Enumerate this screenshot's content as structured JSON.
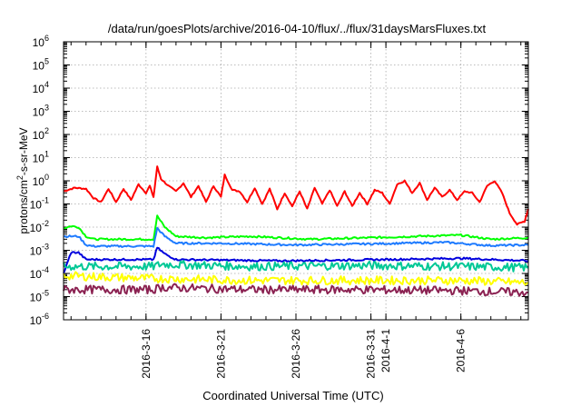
{
  "chart_data": {
    "type": "line",
    "title": "/data/run/goesPlots/archive/2016-04-10/flux/../flux/31daysMarsFluxes.txt",
    "xlabel": "Coordinated Universal Time (UTC)",
    "ylabel": "protons/cm2-s-sr-MeV",
    "ylabel_base": "protons/cm",
    "ylabel_sup": "2",
    "ylabel_rest": "-s-sr-MeV",
    "y_scale": "log",
    "ylim": [
      1e-06,
      1000000.0
    ],
    "y_ticks": [
      {
        "value": 1e-06,
        "base": "10",
        "exp": "-6"
      },
      {
        "value": 1e-05,
        "base": "10",
        "exp": "-5"
      },
      {
        "value": 0.0001,
        "base": "10",
        "exp": "-4"
      },
      {
        "value": 0.001,
        "base": "10",
        "exp": "-3"
      },
      {
        "value": 0.01,
        "base": "10",
        "exp": "-2"
      },
      {
        "value": 0.1,
        "base": "10",
        "exp": "-1"
      },
      {
        "value": 1,
        "base": "10",
        "exp": "0"
      },
      {
        "value": 10,
        "base": "10",
        "exp": "1"
      },
      {
        "value": 100,
        "base": "10",
        "exp": "2"
      },
      {
        "value": 1000,
        "base": "10",
        "exp": "3"
      },
      {
        "value": 10000,
        "base": "10",
        "exp": "4"
      },
      {
        "value": 100000,
        "base": "10",
        "exp": "5"
      },
      {
        "value": 1000000,
        "base": "10",
        "exp": "6"
      }
    ],
    "xlim": [
      "2016-03-10T12:00",
      "2016-04-10T12:00"
    ],
    "x_ticks": [
      "2016-3-16",
      "2016-3-21",
      "2016-3-26",
      "2016-3-31",
      "2016-4-1",
      "2016-4-6"
    ],
    "grid": true,
    "legend": "none",
    "series": [
      {
        "color": "#ff0000",
        "points": [
          [
            "2016-03-10T12:00",
            0.35
          ],
          [
            "2016-03-11T06:00",
            0.5
          ],
          [
            "2016-03-12T00:00",
            0.45
          ],
          [
            "2016-03-12T12:00",
            0.18
          ],
          [
            "2016-03-13T00:00",
            0.12
          ],
          [
            "2016-03-13T12:00",
            0.45
          ],
          [
            "2016-03-14T00:00",
            0.12
          ],
          [
            "2016-03-14T12:00",
            0.45
          ],
          [
            "2016-03-15T00:00",
            0.15
          ],
          [
            "2016-03-15T12:00",
            0.7
          ],
          [
            "2016-03-16T00:00",
            0.3
          ],
          [
            "2016-03-16T06:00",
            0.6
          ],
          [
            "2016-03-16T12:00",
            0.2
          ],
          [
            "2016-03-16T18:00",
            4.0
          ],
          [
            "2016-03-17T00:00",
            1.2
          ],
          [
            "2016-03-17T12:00",
            0.6
          ],
          [
            "2016-03-18T00:00",
            0.35
          ],
          [
            "2016-03-18T12:00",
            0.8
          ],
          [
            "2016-03-19T00:00",
            0.2
          ],
          [
            "2016-03-19T12:00",
            0.6
          ],
          [
            "2016-03-20T00:00",
            0.12
          ],
          [
            "2016-03-20T12:00",
            0.6
          ],
          [
            "2016-03-21T00:00",
            0.2
          ],
          [
            "2016-03-21T06:00",
            1.8
          ],
          [
            "2016-03-21T18:00",
            0.4
          ],
          [
            "2016-03-22T06:00",
            0.35
          ],
          [
            "2016-03-22T18:00",
            0.12
          ],
          [
            "2016-03-23T06:00",
            0.5
          ],
          [
            "2016-03-23T18:00",
            0.1
          ],
          [
            "2016-03-24T06:00",
            0.45
          ],
          [
            "2016-03-24T18:00",
            0.06
          ],
          [
            "2016-03-25T06:00",
            0.3
          ],
          [
            "2016-03-25T18:00",
            0.08
          ],
          [
            "2016-03-26T06:00",
            0.35
          ],
          [
            "2016-03-26T18:00",
            0.06
          ],
          [
            "2016-03-27T06:00",
            0.5
          ],
          [
            "2016-03-27T18:00",
            0.1
          ],
          [
            "2016-03-28T06:00",
            0.4
          ],
          [
            "2016-03-28T18:00",
            0.08
          ],
          [
            "2016-03-29T06:00",
            0.35
          ],
          [
            "2016-03-29T18:00",
            0.08
          ],
          [
            "2016-03-30T06:00",
            0.3
          ],
          [
            "2016-03-30T18:00",
            0.1
          ],
          [
            "2016-03-31T06:00",
            0.4
          ],
          [
            "2016-03-31T18:00",
            0.3
          ],
          [
            "2016-04-01T06:00",
            0.1
          ],
          [
            "2016-04-01T18:00",
            0.7
          ],
          [
            "2016-04-02T06:00",
            1.0
          ],
          [
            "2016-04-02T18:00",
            0.3
          ],
          [
            "2016-04-03T06:00",
            0.8
          ],
          [
            "2016-04-03T18:00",
            0.15
          ],
          [
            "2016-04-04T06:00",
            0.5
          ],
          [
            "2016-04-04T18:00",
            0.2
          ],
          [
            "2016-04-05T06:00",
            0.4
          ],
          [
            "2016-04-05T18:00",
            0.15
          ],
          [
            "2016-04-06T06:00",
            0.35
          ],
          [
            "2016-04-06T18:00",
            0.3
          ],
          [
            "2016-04-07T06:00",
            0.12
          ],
          [
            "2016-04-07T18:00",
            0.6
          ],
          [
            "2016-04-08T06:00",
            1.0
          ],
          [
            "2016-04-08T18:00",
            0.3
          ],
          [
            "2016-04-09T06:00",
            0.04
          ],
          [
            "2016-04-09T18:00",
            0.013
          ],
          [
            "2016-04-10T06:00",
            0.018
          ],
          [
            "2016-04-10T12:00",
            0.06
          ]
        ]
      },
      {
        "color": "#00ff00",
        "points": [
          [
            "2016-03-10T12:00",
            0.009
          ],
          [
            "2016-03-11T00:00",
            0.011
          ],
          [
            "2016-03-11T12:00",
            0.01
          ],
          [
            "2016-03-12T00:00",
            0.004
          ],
          [
            "2016-03-12T12:00",
            0.003
          ],
          [
            "2016-03-16T12:00",
            0.003
          ],
          [
            "2016-03-16T18:00",
            0.03
          ],
          [
            "2016-03-17T06:00",
            0.01
          ],
          [
            "2016-03-18T00:00",
            0.004
          ],
          [
            "2016-03-20T00:00",
            0.0035
          ],
          [
            "2016-03-23T00:00",
            0.004
          ],
          [
            "2016-03-27T00:00",
            0.003
          ],
          [
            "2016-03-31T00:00",
            0.0035
          ],
          [
            "2016-04-03T00:00",
            0.004
          ],
          [
            "2016-04-06T00:00",
            0.0045
          ],
          [
            "2016-04-08T00:00",
            0.003
          ],
          [
            "2016-04-10T12:00",
            0.0035
          ]
        ]
      },
      {
        "color": "#1e7bff",
        "points": [
          [
            "2016-03-10T12:00",
            0.004
          ],
          [
            "2016-03-11T12:00",
            0.004
          ],
          [
            "2016-03-12T00:00",
            0.0017
          ],
          [
            "2016-03-12T12:00",
            0.0015
          ],
          [
            "2016-03-16T12:00",
            0.0015
          ],
          [
            "2016-03-16T18:00",
            0.009
          ],
          [
            "2016-03-17T06:00",
            0.004
          ],
          [
            "2016-03-18T00:00",
            0.002
          ],
          [
            "2016-03-21T00:00",
            0.002
          ],
          [
            "2016-03-26T00:00",
            0.0017
          ],
          [
            "2016-03-31T00:00",
            0.0019
          ],
          [
            "2016-04-05T00:00",
            0.0022
          ],
          [
            "2016-04-08T00:00",
            0.0016
          ],
          [
            "2016-04-10T12:00",
            0.0017
          ]
        ]
      },
      {
        "color": "#0000dd",
        "points": [
          [
            "2016-03-10T12:00",
            0.0001
          ],
          [
            "2016-03-11T00:00",
            0.0008
          ],
          [
            "2016-03-11T12:00",
            0.0008
          ],
          [
            "2016-03-12T00:00",
            0.0004
          ],
          [
            "2016-03-16T12:00",
            0.0004
          ],
          [
            "2016-03-16T18:00",
            0.0013
          ],
          [
            "2016-03-17T06:00",
            0.0007
          ],
          [
            "2016-03-18T00:00",
            0.0004
          ],
          [
            "2016-03-25T00:00",
            0.00035
          ],
          [
            "2016-04-01T00:00",
            0.0004
          ],
          [
            "2016-04-06T00:00",
            0.00045
          ],
          [
            "2016-04-10T12:00",
            0.00035
          ]
        ]
      },
      {
        "color": "#00c896",
        "points": [
          [
            "2016-03-10T12:00",
            0.0002
          ],
          [
            "2016-03-16T12:00",
            0.0002
          ],
          [
            "2016-03-17T00:00",
            0.00025
          ],
          [
            "2016-03-23T00:00",
            0.0002
          ],
          [
            "2016-03-31T00:00",
            0.00022
          ],
          [
            "2016-04-06T00:00",
            0.0002
          ],
          [
            "2016-04-10T12:00",
            0.00018
          ]
        ]
      },
      {
        "color": "#ffff00",
        "points": [
          [
            "2016-03-10T12:00",
            8e-05
          ],
          [
            "2016-03-16T12:00",
            6e-05
          ],
          [
            "2016-03-17T00:00",
            6e-05
          ],
          [
            "2016-03-23T00:00",
            5e-05
          ],
          [
            "2016-03-30T00:00",
            5e-05
          ],
          [
            "2016-04-06T00:00",
            5e-05
          ],
          [
            "2016-04-10T12:00",
            4e-05
          ]
        ]
      },
      {
        "color": "#8b2252",
        "points": [
          [
            "2016-03-10T12:00",
            2e-05
          ],
          [
            "2016-03-16T12:00",
            2e-05
          ],
          [
            "2016-03-17T00:00",
            2.5e-05
          ],
          [
            "2016-03-23T00:00",
            2e-05
          ],
          [
            "2016-03-30T00:00",
            2e-05
          ],
          [
            "2016-04-06T00:00",
            1.8e-05
          ],
          [
            "2016-04-10T12:00",
            1.5e-05
          ]
        ]
      }
    ]
  }
}
